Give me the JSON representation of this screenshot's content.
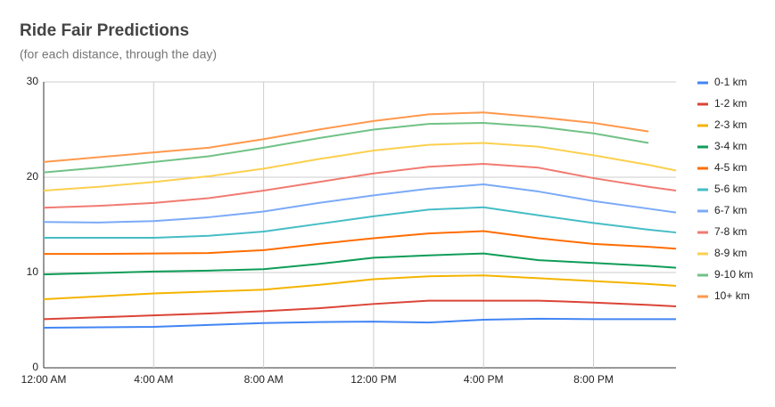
{
  "chart_data": {
    "type": "line",
    "title": "Ride Fair Predictions",
    "subtitle": "(for each distance, through the day)",
    "x": [
      0,
      2,
      4,
      6,
      8,
      10,
      12,
      14,
      16,
      18,
      20,
      22,
      23
    ],
    "xlim": [
      0,
      23
    ],
    "xticks": [
      {
        "value": 0,
        "label": "12:00 AM"
      },
      {
        "value": 4,
        "label": "4:00 AM"
      },
      {
        "value": 8,
        "label": "8:00 AM"
      },
      {
        "value": 12,
        "label": "12:00 PM"
      },
      {
        "value": 16,
        "label": "4:00 PM"
      },
      {
        "value": 20,
        "label": "8:00 PM"
      }
    ],
    "ylim": [
      0,
      30
    ],
    "yticks": [
      0,
      10,
      20,
      30
    ],
    "grid": true,
    "legend": "right",
    "series": [
      {
        "name": "0-1 km",
        "color": "#4285f4",
        "values": [
          4.2,
          4.25,
          4.3,
          4.5,
          4.7,
          4.8,
          4.85,
          4.75,
          5.05,
          5.15,
          5.1,
          5.1,
          5.1
        ]
      },
      {
        "name": "1-2 km",
        "color": "#db4437",
        "values": [
          5.1,
          5.3,
          5.5,
          5.7,
          5.95,
          6.25,
          6.7,
          7.05,
          7.05,
          7.05,
          6.85,
          6.6,
          6.45
        ]
      },
      {
        "name": "2-3 km",
        "color": "#f4b400",
        "values": [
          7.2,
          7.5,
          7.8,
          8.0,
          8.2,
          8.7,
          9.3,
          9.6,
          9.7,
          9.4,
          9.1,
          8.8,
          8.6
        ]
      },
      {
        "name": "3-4 km",
        "color": "#0f9d58",
        "values": [
          9.8,
          9.95,
          10.1,
          10.2,
          10.35,
          10.9,
          11.55,
          11.8,
          12.0,
          11.3,
          11.0,
          10.7,
          10.5
        ]
      },
      {
        "name": "4-5 km",
        "color": "#ff6d01",
        "values": [
          11.95,
          11.95,
          12.0,
          12.05,
          12.35,
          13.0,
          13.6,
          14.1,
          14.35,
          13.6,
          13.0,
          12.7,
          12.5
        ]
      },
      {
        "name": "5-6 km",
        "color": "#46bdc6",
        "values": [
          13.65,
          13.65,
          13.65,
          13.85,
          14.3,
          15.1,
          15.9,
          16.6,
          16.85,
          16.0,
          15.2,
          14.5,
          14.2
        ]
      },
      {
        "name": "6-7 km",
        "color": "#7baaf7",
        "values": [
          15.3,
          15.25,
          15.4,
          15.8,
          16.4,
          17.3,
          18.1,
          18.8,
          19.25,
          18.5,
          17.5,
          16.7,
          16.3
        ]
      },
      {
        "name": "7-8 km",
        "color": "#f07b72",
        "values": [
          16.8,
          17.0,
          17.3,
          17.8,
          18.6,
          19.5,
          20.4,
          21.1,
          21.4,
          21.0,
          19.9,
          19.0,
          18.6
        ]
      },
      {
        "name": "8-9 km",
        "color": "#fcd04f",
        "values": [
          18.6,
          19.0,
          19.5,
          20.1,
          20.9,
          21.9,
          22.8,
          23.4,
          23.6,
          23.2,
          22.3,
          21.3,
          20.7
        ]
      },
      {
        "name": "9-10 km",
        "color": "#71c287",
        "values": [
          20.5,
          21.0,
          21.6,
          22.2,
          23.1,
          24.1,
          25.0,
          25.6,
          25.7,
          25.3,
          24.6,
          23.6,
          null
        ]
      },
      {
        "name": "10+ km",
        "color": "#ff994d",
        "values": [
          21.6,
          22.1,
          22.6,
          23.1,
          24.0,
          25.0,
          25.9,
          26.6,
          26.8,
          26.3,
          25.7,
          24.8,
          null
        ]
      }
    ]
  }
}
